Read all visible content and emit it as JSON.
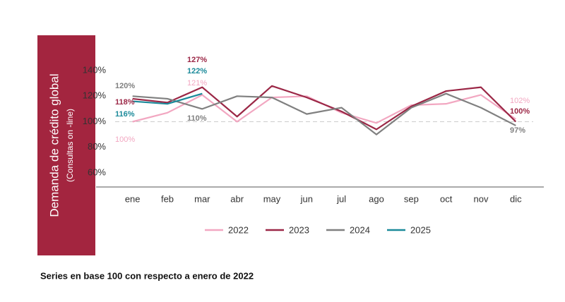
{
  "chart_data": {
    "type": "line",
    "y_label": "Demanda de crédito global",
    "y_sublabel": "(Consultas on -line)",
    "footnote": "Series en base 100 con respecto a enero de 2022",
    "categories": [
      "ene",
      "feb",
      "mar",
      "abr",
      "may",
      "jun",
      "jul",
      "ago",
      "sep",
      "oct",
      "nov",
      "dic"
    ],
    "series": [
      {
        "name": "2022",
        "color": "#f2a7c1",
        "values": [
          100,
          107,
          121,
          100,
          119,
          120,
          107,
          99,
          113,
          114,
          121,
          102
        ],
        "value_labels": [
          "100%",
          null,
          "121%",
          null,
          null,
          null,
          null,
          null,
          null,
          null,
          null,
          "102%"
        ]
      },
      {
        "name": "2023",
        "color": "#9b2746",
        "values": [
          118,
          115,
          127,
          104,
          128,
          119,
          108,
          94,
          112,
          124,
          127,
          100
        ],
        "value_labels": [
          "118%",
          null,
          "127%",
          null,
          null,
          null,
          null,
          null,
          null,
          null,
          null,
          "100%"
        ]
      },
      {
        "name": "2024",
        "color": "#808080",
        "values": [
          120,
          118,
          110,
          120,
          119,
          106,
          111,
          90,
          111,
          122,
          111,
          97
        ],
        "value_labels": [
          "120%",
          null,
          "110%",
          null,
          null,
          null,
          null,
          null,
          null,
          null,
          null,
          "97%"
        ]
      },
      {
        "name": "2025",
        "color": "#1b8a9a",
        "values": [
          116,
          114,
          122,
          null,
          null,
          null,
          null,
          null,
          null,
          null,
          null,
          null
        ],
        "value_labels": [
          "116%",
          null,
          "122%",
          null,
          null,
          null,
          null,
          null,
          null,
          null,
          null,
          null
        ]
      }
    ],
    "ylim": [
      50,
      150
    ],
    "yticks": [
      {
        "value": 60,
        "label": "60%"
      },
      {
        "value": 80,
        "label": "80%"
      },
      {
        "value": 100,
        "label": "100%"
      },
      {
        "value": 120,
        "label": "120%"
      },
      {
        "value": 140,
        "label": "140%"
      }
    ],
    "reference_line": 100,
    "legend": "bottom"
  }
}
